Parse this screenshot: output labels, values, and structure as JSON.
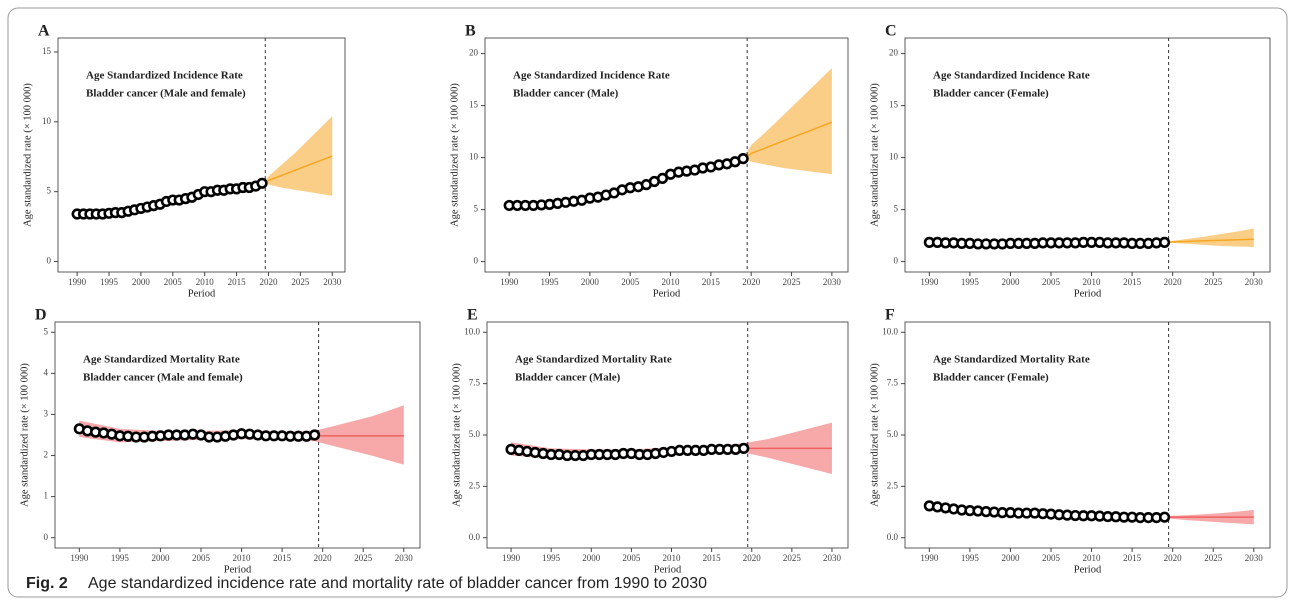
{
  "caption": {
    "label": "Fig. 2",
    "text": "Age standardized incidence rate and mortality rate of bladder cancer from 1990 to 2030"
  },
  "chart_data": [
    {
      "type": "line",
      "panel": "A",
      "annotation": [
        "Age Standardized Incidence Rate",
        "Bladder cancer (Male and female)"
      ],
      "x_label": "Period",
      "y_label": "Age standardized rate (× 100 000)",
      "xlim": [
        1987,
        2032
      ],
      "xticks": [
        1990,
        1995,
        2000,
        2005,
        2010,
        2015,
        2020,
        2025,
        2030
      ],
      "ylim": [
        -0.75,
        16
      ],
      "yticks": [
        0,
        5,
        10,
        15
      ],
      "divider_x": 2019.5,
      "observed": {
        "color": "#000000",
        "x": [
          1990,
          1991,
          1992,
          1993,
          1994,
          1995,
          1996,
          1997,
          1998,
          1999,
          2000,
          2001,
          2002,
          2003,
          2004,
          2005,
          2006,
          2007,
          2008,
          2009,
          2010,
          2011,
          2012,
          2013,
          2014,
          2015,
          2016,
          2017,
          2018,
          2019
        ],
        "values": [
          3.4,
          3.4,
          3.4,
          3.4,
          3.4,
          3.45,
          3.5,
          3.5,
          3.6,
          3.7,
          3.8,
          3.9,
          4.0,
          4.1,
          4.3,
          4.4,
          4.4,
          4.5,
          4.6,
          4.8,
          5.0,
          5.0,
          5.1,
          5.1,
          5.2,
          5.2,
          5.3,
          5.3,
          5.4,
          5.6
        ]
      },
      "band": {
        "color": "#f5a623",
        "x": [
          2019,
          2020,
          2022,
          2024,
          2026,
          2028,
          2030
        ],
        "values": [
          5.6,
          5.8,
          6.15,
          6.5,
          6.85,
          7.2,
          7.55
        ],
        "lower": [
          5.6,
          5.5,
          5.3,
          5.15,
          5.0,
          4.85,
          4.7
        ],
        "upper": [
          5.6,
          6.1,
          6.9,
          7.7,
          8.6,
          9.5,
          10.4
        ]
      }
    },
    {
      "type": "line",
      "panel": "B",
      "annotation": [
        "Age Standardized Incidence Rate",
        "Bladder cancer (Male)"
      ],
      "x_label": "Period",
      "y_label": "Age standardized rate (× 100 000)",
      "xlim": [
        1987,
        2032
      ],
      "xticks": [
        1990,
        1995,
        2000,
        2005,
        2010,
        2015,
        2020,
        2025,
        2030
      ],
      "ylim": [
        -1,
        21.5
      ],
      "yticks": [
        0,
        5,
        10,
        15,
        20
      ],
      "divider_x": 2019.5,
      "observed": {
        "color": "#000000",
        "x": [
          1990,
          1991,
          1992,
          1993,
          1994,
          1995,
          1996,
          1997,
          1998,
          1999,
          2000,
          2001,
          2002,
          2003,
          2004,
          2005,
          2006,
          2007,
          2008,
          2009,
          2010,
          2011,
          2012,
          2013,
          2014,
          2015,
          2016,
          2017,
          2018,
          2019
        ],
        "values": [
          5.4,
          5.4,
          5.4,
          5.4,
          5.45,
          5.5,
          5.6,
          5.7,
          5.8,
          5.9,
          6.1,
          6.2,
          6.4,
          6.6,
          6.9,
          7.1,
          7.2,
          7.4,
          7.7,
          8.0,
          8.4,
          8.6,
          8.7,
          8.8,
          9.0,
          9.1,
          9.3,
          9.4,
          9.6,
          9.9
        ]
      },
      "band": {
        "color": "#f5a623",
        "x": [
          2019,
          2020,
          2022,
          2024,
          2026,
          2028,
          2030
        ],
        "values": [
          9.9,
          10.4,
          11.0,
          11.6,
          12.2,
          12.8,
          13.4
        ],
        "lower": [
          9.9,
          9.6,
          9.3,
          9.0,
          8.8,
          8.6,
          8.4
        ],
        "upper": [
          9.9,
          11.2,
          12.6,
          14.1,
          15.6,
          17.1,
          18.6
        ]
      }
    },
    {
      "type": "line",
      "panel": "C",
      "annotation": [
        "Age Standardized Incidence Rate",
        "Bladder cancer (Female)"
      ],
      "x_label": "Period",
      "y_label": "Age standardized rate (× 100 000)",
      "xlim": [
        1987,
        2032
      ],
      "xticks": [
        1990,
        1995,
        2000,
        2005,
        2010,
        2015,
        2020,
        2025,
        2030
      ],
      "ylim": [
        -1,
        21.5
      ],
      "yticks": [
        0,
        5,
        10,
        15,
        20
      ],
      "divider_x": 2019.5,
      "observed": {
        "color": "#000000",
        "x": [
          1990,
          1991,
          1992,
          1993,
          1994,
          1995,
          1996,
          1997,
          1998,
          1999,
          2000,
          2001,
          2002,
          2003,
          2004,
          2005,
          2006,
          2007,
          2008,
          2009,
          2010,
          2011,
          2012,
          2013,
          2014,
          2015,
          2016,
          2017,
          2018,
          2019
        ],
        "values": [
          1.85,
          1.85,
          1.8,
          1.8,
          1.75,
          1.75,
          1.7,
          1.7,
          1.7,
          1.7,
          1.75,
          1.75,
          1.75,
          1.75,
          1.8,
          1.8,
          1.8,
          1.8,
          1.8,
          1.85,
          1.85,
          1.85,
          1.8,
          1.8,
          1.8,
          1.75,
          1.75,
          1.75,
          1.8,
          1.85
        ]
      },
      "band": {
        "color": "#f5a623",
        "x": [
          2019,
          2020,
          2022,
          2024,
          2026,
          2028,
          2030
        ],
        "values": [
          1.85,
          1.9,
          1.95,
          2.0,
          2.05,
          2.1,
          2.15
        ],
        "lower": [
          1.85,
          1.8,
          1.7,
          1.6,
          1.5,
          1.45,
          1.4
        ],
        "upper": [
          1.85,
          2.0,
          2.2,
          2.4,
          2.65,
          2.9,
          3.2
        ]
      }
    },
    {
      "type": "line",
      "panel": "D",
      "annotation": [
        "Age Standardized Mortality Rate",
        "Bladder cancer (Male and female)"
      ],
      "x_label": "Period",
      "y_label": "Age standardized rate (× 100 000)",
      "xlim": [
        1987,
        2032
      ],
      "xticks": [
        1990,
        1995,
        2000,
        2005,
        2010,
        2015,
        2020,
        2025,
        2030
      ],
      "ylim": [
        -0.25,
        5.25
      ],
      "yticks": [
        0,
        1,
        2,
        3,
        4,
        5
      ],
      "divider_x": 2019.5,
      "observed": {
        "color": "#000000",
        "x": [
          1990,
          1991,
          1992,
          1993,
          1994,
          1995,
          1996,
          1997,
          1998,
          1999,
          2000,
          2001,
          2002,
          2003,
          2004,
          2005,
          2006,
          2007,
          2008,
          2009,
          2010,
          2011,
          2012,
          2013,
          2014,
          2015,
          2016,
          2017,
          2018,
          2019
        ],
        "values": [
          2.65,
          2.6,
          2.57,
          2.55,
          2.52,
          2.48,
          2.47,
          2.45,
          2.45,
          2.47,
          2.48,
          2.5,
          2.5,
          2.5,
          2.52,
          2.5,
          2.45,
          2.45,
          2.47,
          2.5,
          2.53,
          2.52,
          2.5,
          2.48,
          2.48,
          2.48,
          2.47,
          2.47,
          2.47,
          2.5
        ]
      },
      "band": {
        "color": "#f06060",
        "x": [
          1990,
          1995,
          2000,
          2005,
          2010,
          2015,
          2019,
          2022,
          2026,
          2030
        ],
        "values": [
          2.65,
          2.5,
          2.48,
          2.5,
          2.52,
          2.47,
          2.48,
          2.48,
          2.48,
          2.48
        ],
        "lower": [
          2.45,
          2.32,
          2.35,
          2.38,
          2.4,
          2.38,
          2.35,
          2.2,
          2.0,
          1.78
        ],
        "upper": [
          2.85,
          2.65,
          2.6,
          2.6,
          2.62,
          2.58,
          2.6,
          2.75,
          2.95,
          3.22
        ]
      }
    },
    {
      "type": "line",
      "panel": "E",
      "annotation": [
        "Age Standardized Mortality Rate",
        "Bladder cancer (Male)"
      ],
      "x_label": "Period",
      "y_label": "Age standardized rate (× 100 000)",
      "xlim": [
        1987,
        2032
      ],
      "xticks": [
        1990,
        1995,
        2000,
        2005,
        2010,
        2015,
        2020,
        2025,
        2030
      ],
      "ylim": [
        -0.5,
        10.5
      ],
      "yticks": [
        {
          "value": 0,
          "label": "0.0"
        },
        2.5,
        {
          "value": 5,
          "label": "5.0"
        },
        7.5,
        {
          "value": 10,
          "label": "10.0"
        }
      ],
      "divider_x": 2019.5,
      "observed": {
        "color": "#000000",
        "x": [
          1990,
          1991,
          1992,
          1993,
          1994,
          1995,
          1996,
          1997,
          1998,
          1999,
          2000,
          2001,
          2002,
          2003,
          2004,
          2005,
          2006,
          2007,
          2008,
          2009,
          2010,
          2011,
          2012,
          2013,
          2014,
          2015,
          2016,
          2017,
          2018,
          2019
        ],
        "values": [
          4.3,
          4.25,
          4.2,
          4.15,
          4.1,
          4.05,
          4.05,
          4.0,
          4.0,
          4.0,
          4.05,
          4.05,
          4.05,
          4.05,
          4.1,
          4.1,
          4.05,
          4.05,
          4.1,
          4.15,
          4.2,
          4.25,
          4.25,
          4.25,
          4.25,
          4.3,
          4.3,
          4.3,
          4.3,
          4.35
        ]
      },
      "band": {
        "color": "#f06060",
        "x": [
          1990,
          1995,
          2000,
          2005,
          2010,
          2015,
          2019,
          2022,
          2026,
          2030
        ],
        "values": [
          4.3,
          4.1,
          4.05,
          4.1,
          4.2,
          4.3,
          4.35,
          4.35,
          4.35,
          4.35
        ],
        "lower": [
          4.0,
          3.85,
          3.85,
          3.9,
          4.0,
          4.15,
          4.15,
          3.9,
          3.5,
          3.1
        ],
        "upper": [
          4.65,
          4.35,
          4.3,
          4.3,
          4.4,
          4.45,
          4.6,
          4.8,
          5.2,
          5.6
        ]
      }
    },
    {
      "type": "line",
      "panel": "F",
      "annotation": [
        "Age Standardized Mortality Rate",
        "Bladder cancer (Female)"
      ],
      "x_label": "Period",
      "y_label": "Age standardized rate (× 100 000)",
      "xlim": [
        1987,
        2032
      ],
      "xticks": [
        1990,
        1995,
        2000,
        2005,
        2010,
        2015,
        2020,
        2025,
        2030
      ],
      "ylim": [
        -0.5,
        10.5
      ],
      "yticks": [
        {
          "value": 0,
          "label": "0.0"
        },
        2.5,
        {
          "value": 5,
          "label": "5.0"
        },
        7.5,
        {
          "value": 10,
          "label": "10.0"
        }
      ],
      "divider_x": 2019.5,
      "observed": {
        "color": "#000000",
        "x": [
          1990,
          1991,
          1992,
          1993,
          1994,
          1995,
          1996,
          1997,
          1998,
          1999,
          2000,
          2001,
          2002,
          2003,
          2004,
          2005,
          2006,
          2007,
          2008,
          2009,
          2010,
          2011,
          2012,
          2013,
          2014,
          2015,
          2016,
          2017,
          2018,
          2019
        ],
        "values": [
          1.55,
          1.5,
          1.45,
          1.4,
          1.35,
          1.32,
          1.3,
          1.27,
          1.25,
          1.22,
          1.22,
          1.2,
          1.2,
          1.2,
          1.17,
          1.15,
          1.12,
          1.1,
          1.08,
          1.07,
          1.07,
          1.05,
          1.03,
          1.02,
          1.0,
          1.0,
          0.98,
          0.98,
          0.98,
          1.0
        ]
      },
      "band": {
        "color": "#f06060",
        "x": [
          1990,
          1995,
          2000,
          2005,
          2010,
          2015,
          2019,
          2022,
          2026,
          2030
        ],
        "values": [
          1.55,
          1.35,
          1.22,
          1.15,
          1.07,
          1.0,
          1.0,
          1.0,
          1.0,
          1.0
        ],
        "lower": [
          1.48,
          1.3,
          1.17,
          1.1,
          1.02,
          0.95,
          0.95,
          0.85,
          0.75,
          0.65
        ],
        "upper": [
          1.62,
          1.4,
          1.28,
          1.2,
          1.12,
          1.05,
          1.05,
          1.1,
          1.2,
          1.35
        ]
      }
    }
  ]
}
